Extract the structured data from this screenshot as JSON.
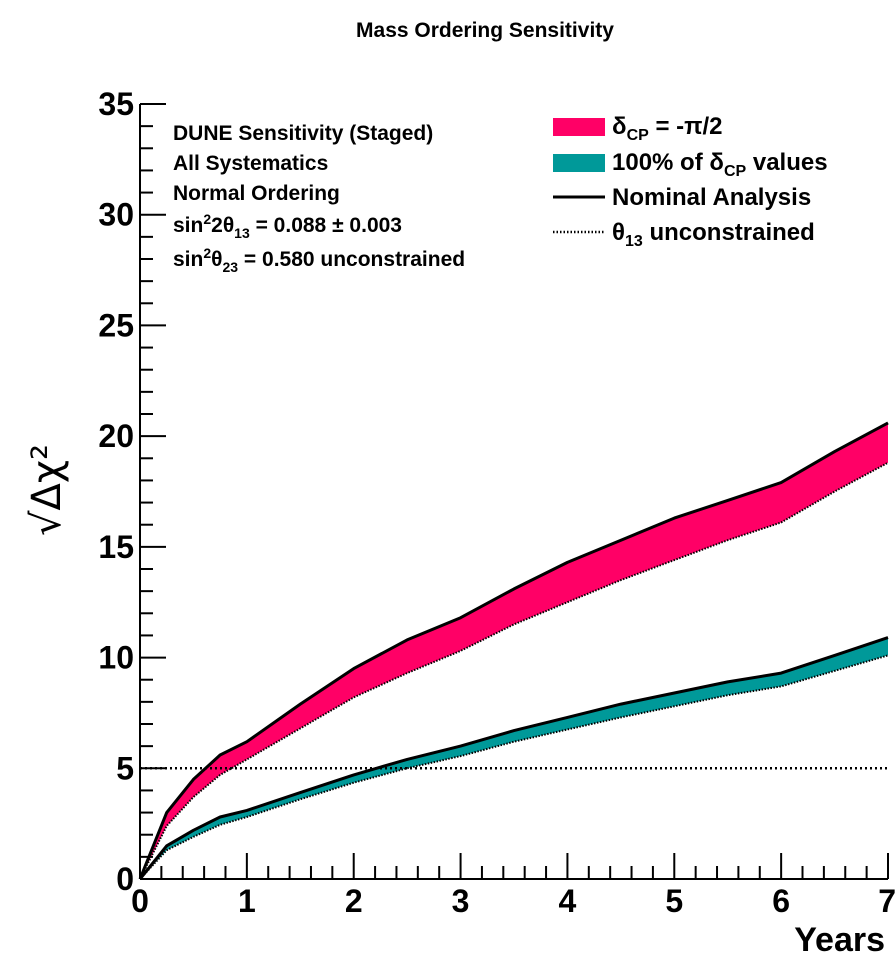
{
  "chart_data": {
    "type": "area",
    "title": "Mass Ordering Sensitivity",
    "xlabel": "Years",
    "ylabel": "√Δχ²",
    "xlim": [
      0,
      7
    ],
    "ylim": [
      0,
      35
    ],
    "x_ticks": [
      "0",
      "1",
      "2",
      "3",
      "4",
      "5",
      "6",
      "7"
    ],
    "y_ticks": [
      "0",
      "5",
      "10",
      "15",
      "20",
      "25",
      "30",
      "35"
    ],
    "grid": false,
    "reference_line": {
      "y": 5,
      "style": "dotted"
    },
    "annotations": {
      "line1": "DUNE Sensitivity (Staged)",
      "line2": "All Systematics",
      "line3": "Normal Ordering",
      "line4": {
        "a": "sin",
        "b": "2",
        "c": "2θ",
        "d": "13",
        "e": " = 0.088 ± 0.003"
      },
      "line5": {
        "a": "sin",
        "b": "2",
        "c": "θ",
        "d": "23",
        "e": " = 0.580 unconstrained"
      }
    },
    "legend": {
      "position": "top-right",
      "entry1": {
        "a": "δ",
        "b": "CP",
        "c": " = -π/2"
      },
      "entry2": {
        "a": "100% of δ",
        "b": "CP",
        "c": " values"
      },
      "entry3": "Nominal Analysis",
      "entry4": {
        "a": "θ",
        "b": "13",
        "c": " unconstrained"
      }
    },
    "x": [
      0,
      0.25,
      0.5,
      0.75,
      1,
      1.5,
      2,
      2.5,
      3,
      3.5,
      4,
      4.5,
      5,
      5.5,
      6,
      6.5,
      7
    ],
    "series": [
      {
        "band": "delta_cp_minus_pi_2",
        "color": "#ff0066",
        "upper": [
          0,
          3.0,
          4.5,
          5.6,
          6.2,
          7.9,
          9.5,
          10.8,
          11.8,
          13.1,
          14.3,
          15.3,
          16.3,
          17.1,
          17.9,
          19.3,
          20.6
        ],
        "lower": [
          0,
          2.4,
          3.7,
          4.7,
          5.4,
          6.8,
          8.2,
          9.3,
          10.3,
          11.5,
          12.5,
          13.5,
          14.4,
          15.3,
          16.1,
          17.5,
          18.8
        ]
      },
      {
        "band": "delta_cp_all",
        "color": "#009999",
        "upper": [
          0,
          1.5,
          2.2,
          2.8,
          3.1,
          3.9,
          4.7,
          5.4,
          6.0,
          6.7,
          7.3,
          7.9,
          8.4,
          8.9,
          9.3,
          10.1,
          10.9
        ],
        "lower": [
          0,
          1.3,
          1.9,
          2.45,
          2.8,
          3.6,
          4.35,
          5.0,
          5.55,
          6.2,
          6.75,
          7.3,
          7.8,
          8.3,
          8.7,
          9.4,
          10.1
        ]
      }
    ]
  }
}
